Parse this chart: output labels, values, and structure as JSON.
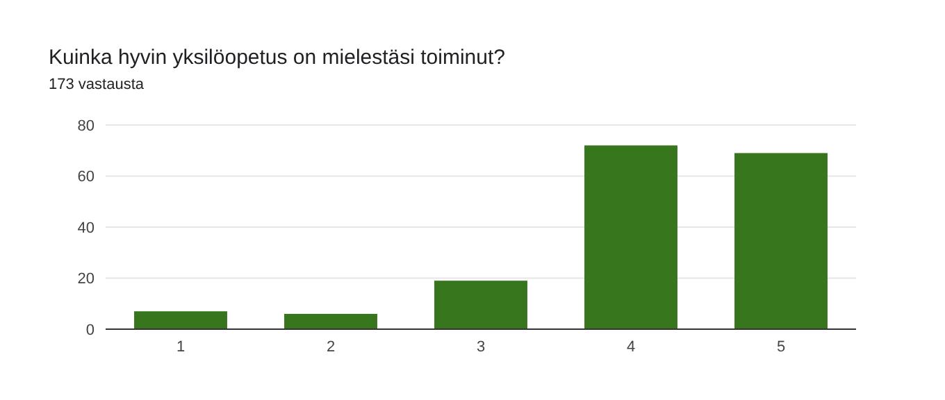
{
  "chart_data": {
    "type": "bar",
    "title": "Kuinka hyvin yksilöopetus on mielestäsi toiminut?",
    "subtitle": "173 vastausta",
    "categories": [
      "1",
      "2",
      "3",
      "4",
      "5"
    ],
    "values": [
      7,
      6,
      19,
      72,
      69
    ],
    "color": "#38761d",
    "ylim": [
      0,
      80
    ],
    "yticks": [
      0,
      20,
      40,
      60,
      80
    ],
    "grid": "y"
  }
}
